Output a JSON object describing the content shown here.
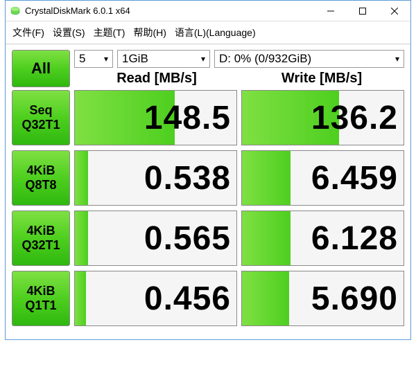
{
  "window": {
    "title": "CrystalDiskMark 6.0.1 x64"
  },
  "menu": {
    "file": "文件(F)",
    "settings": "设置(S)",
    "theme": "主题(T)",
    "help": "帮助(H)",
    "language": "语言(L)(Language)"
  },
  "controls": {
    "all_label": "All",
    "passes": "5",
    "size": "1GiB",
    "drive": "D: 0% (0/932GiB)"
  },
  "headers": {
    "read": "Read [MB/s]",
    "write": "Write [MB/s]"
  },
  "rows": [
    {
      "label1": "Seq",
      "label2": "Q32T1",
      "read": "148.5",
      "write": "136.2",
      "read_fill_pct": 62,
      "write_fill_pct": 60
    },
    {
      "label1": "4KiB",
      "label2": "Q8T8",
      "read": "0.538",
      "write": "6.459",
      "read_fill_pct": 8,
      "write_fill_pct": 30
    },
    {
      "label1": "4KiB",
      "label2": "Q32T1",
      "read": "0.565",
      "write": "6.128",
      "read_fill_pct": 8,
      "write_fill_pct": 30
    },
    {
      "label1": "4KiB",
      "label2": "Q1T1",
      "read": "0.456",
      "write": "5.690",
      "read_fill_pct": 7,
      "write_fill_pct": 29
    }
  ],
  "colors": {
    "accent_green_light": "#7fe043",
    "accent_green_dark": "#2fb80f",
    "border": "#888888",
    "window_border": "#5a9bd5",
    "cell_bg": "#f5f5f5",
    "text": "#000000"
  },
  "typography": {
    "value_fontsize": 48,
    "rowlabel_fontsize": 18,
    "header_fontsize": 20,
    "title_fontsize": 13
  }
}
